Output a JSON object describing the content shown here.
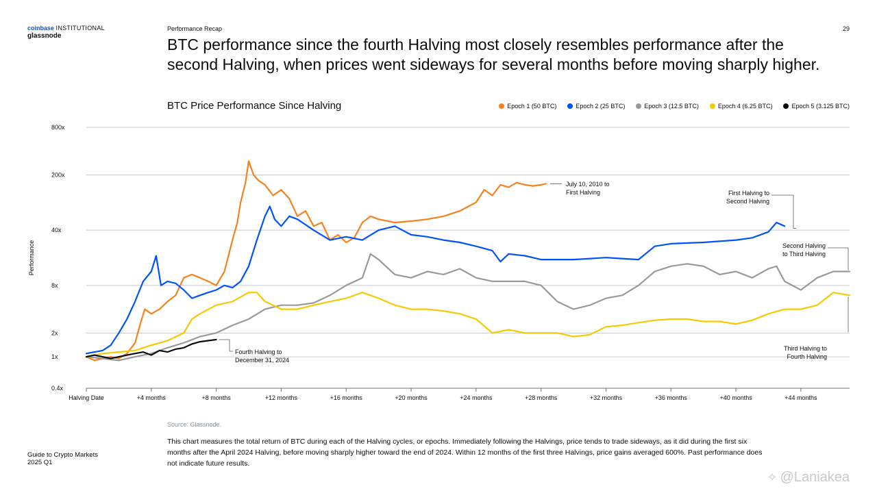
{
  "header": {
    "brand_line1": "coinbase",
    "brand_line1b": "INSTITUTIONAL",
    "brand_line2": "glassnode",
    "section": "Performance Recap",
    "page_number": "29",
    "headline": "BTC performance since the fourth Halving most closely resembles performance after the second Halving, when prices went sideways for several months before moving sharply higher."
  },
  "footer": {
    "source": "Source: Glassnode.",
    "caption": "This chart measures the total return of BTC during each of the Halving cycles, or epochs. Immediately following the Halvings, price tends to trade sideways, as it did during the first six months after the April 2024 Halving, before moving sharply higher toward the end of 2024. Within 12 months of the first three Halvings, price gains averaged 600%. Past performance does not indicate future results.",
    "guide_line1": "Guide to Crypto Markets",
    "guide_line2": "2025 Q1",
    "watermark": "@Laniakea"
  },
  "chart_data": {
    "type": "line",
    "title": "BTC Price Performance Since Halving",
    "ylabel": "Performance",
    "xlabel": "",
    "y_scale": "log",
    "ylim": [
      0.4,
      800
    ],
    "y_ticks": [
      0.4,
      1,
      2,
      8,
      40,
      200,
      800
    ],
    "y_tick_labels": [
      "0.4x",
      "1x",
      "2x",
      "8x",
      "40x",
      "200x",
      "800x"
    ],
    "xlim": [
      0,
      47
    ],
    "x_ticks": [
      0,
      4,
      8,
      12,
      16,
      20,
      24,
      28,
      32,
      36,
      40,
      44
    ],
    "x_tick_labels": [
      "Halving Date",
      "+4 months",
      "+8 months",
      "+12 months",
      "+16 months",
      "+20 months",
      "+24 months",
      "+28 months",
      "+32 months",
      "+36 months",
      "+40 months",
      "+44 months"
    ],
    "grid": true,
    "legend_position": "top-right",
    "series": [
      {
        "name": "Epoch 1 (50 BTC)",
        "color": "#f5821f",
        "x": [
          0,
          0.5,
          1,
          1.5,
          2,
          2.5,
          3,
          3.3,
          3.6,
          4,
          4.5,
          5,
          5.5,
          6,
          6.5,
          7,
          7.5,
          8,
          8.5,
          9,
          9.3,
          9.5,
          9.8,
          10,
          10.3,
          10.6,
          11,
          11.5,
          12,
          12.5,
          13,
          13.5,
          14,
          14.5,
          15,
          15.5,
          16,
          16.5,
          17,
          17.5,
          18,
          19,
          20,
          21,
          22,
          23,
          24,
          24.5,
          25,
          25.5,
          26,
          26.5,
          27,
          27.5,
          28,
          28.3
        ],
        "y": [
          1.0,
          0.9,
          0.95,
          1.0,
          0.95,
          1.1,
          1.5,
          2.5,
          4,
          3.5,
          4,
          5,
          6,
          10,
          11,
          10,
          9,
          8,
          12,
          30,
          50,
          90,
          160,
          300,
          200,
          170,
          150,
          110,
          130,
          100,
          60,
          70,
          45,
          50,
          30,
          35,
          28,
          32,
          50,
          60,
          55,
          50,
          52,
          55,
          60,
          70,
          90,
          130,
          110,
          150,
          140,
          160,
          150,
          145,
          150,
          155
        ]
      },
      {
        "name": "Epoch 2 (25 BTC)",
        "color": "#0052ff",
        "x": [
          0,
          0.5,
          1,
          1.5,
          2,
          2.5,
          3,
          3.5,
          4,
          4.3,
          4.6,
          5,
          5.5,
          6,
          6.5,
          7,
          7.5,
          8,
          8.5,
          9,
          9.5,
          10,
          10.5,
          11,
          11.3,
          11.6,
          12,
          12.5,
          13,
          14,
          15,
          16,
          17,
          18,
          19,
          20,
          21,
          22,
          23,
          24,
          25,
          25.5,
          26,
          27,
          28,
          30,
          32,
          34,
          35,
          36,
          38,
          40,
          41,
          42,
          42.5,
          43
        ],
        "y": [
          1.1,
          1.15,
          1.2,
          1.4,
          2,
          3,
          5,
          9,
          12,
          19,
          8,
          9,
          8.5,
          7,
          5.5,
          6,
          6.5,
          7,
          8,
          7.5,
          9,
          14,
          30,
          60,
          80,
          55,
          45,
          60,
          55,
          40,
          30,
          33,
          30,
          40,
          45,
          35,
          33,
          30,
          28,
          25,
          22,
          16,
          20,
          19,
          17,
          17,
          18,
          17,
          25,
          27,
          28,
          30,
          32,
          38,
          50,
          45
        ]
      },
      {
        "name": "Epoch 3 (12.5 BTC)",
        "color": "#999999",
        "x": [
          0,
          1,
          2,
          3,
          4,
          5,
          6,
          7,
          8,
          9,
          10,
          11,
          12,
          13,
          14,
          15,
          16,
          17,
          17.5,
          18,
          19,
          20,
          21,
          22,
          23,
          24,
          25,
          26,
          27,
          28,
          29,
          30,
          31,
          32,
          33,
          34,
          35,
          36,
          37,
          38,
          39,
          40,
          41,
          42,
          42.5,
          43,
          44,
          45,
          46,
          47
        ],
        "y": [
          1.0,
          0.95,
          0.9,
          1.0,
          1.1,
          1.3,
          1.5,
          1.8,
          2.0,
          2.5,
          3.0,
          4.0,
          4.5,
          4.5,
          4.8,
          6,
          8,
          10,
          20,
          17,
          11,
          10,
          12,
          11,
          13,
          10,
          9,
          9,
          9,
          8,
          5,
          4,
          4.5,
          5.5,
          6,
          8,
          12,
          14,
          15,
          14,
          11,
          12,
          10,
          13,
          14,
          9,
          7,
          10,
          12,
          12
        ]
      },
      {
        "name": "Epoch 4 (6.25 BTC)",
        "color": "#f7c900",
        "x": [
          0,
          1,
          2,
          3,
          4,
          5,
          6,
          6.5,
          7,
          8,
          9,
          10,
          10.5,
          11,
          11.5,
          12,
          13,
          14,
          15,
          16,
          17,
          18,
          19,
          20,
          21,
          22,
          23,
          24,
          25,
          26,
          27,
          28,
          29,
          30,
          31,
          32,
          33,
          34,
          35,
          36,
          37,
          38,
          39,
          40,
          41,
          42,
          43,
          44,
          45,
          46,
          47
        ],
        "y": [
          1.0,
          1.1,
          1.15,
          1.2,
          1.4,
          1.6,
          2.0,
          3.0,
          3.5,
          4.5,
          5,
          6.5,
          6.5,
          5,
          4.5,
          4,
          4.0,
          4.5,
          5.0,
          5.5,
          6.5,
          5.5,
          4.5,
          4.0,
          4.0,
          3.8,
          3.5,
          3.0,
          2.0,
          2.2,
          2.0,
          2.0,
          2.0,
          1.8,
          1.9,
          2.4,
          2.5,
          2.7,
          2.9,
          3.0,
          3.0,
          2.8,
          2.8,
          2.6,
          2.9,
          3.5,
          4,
          4,
          4.5,
          6.5,
          6
        ]
      },
      {
        "name": "Epoch 5 (3.125 BTC)",
        "color": "#0a0b0d",
        "x": [
          0,
          0.5,
          1,
          1.5,
          2,
          2.5,
          3,
          3.5,
          4,
          4.5,
          5,
          5.5,
          6,
          6.5,
          7,
          7.5,
          8
        ],
        "y": [
          1.0,
          1.05,
          1.0,
          0.95,
          1.0,
          1.05,
          1.1,
          1.15,
          1.05,
          1.2,
          1.15,
          1.25,
          1.3,
          1.45,
          1.55,
          1.6,
          1.65
        ]
      }
    ],
    "annotations": [
      {
        "text_lines": [
          "July 10, 2010 to",
          "First Halving"
        ],
        "x": 28.3,
        "y": 155
      },
      {
        "text_lines": [
          "First Halving to",
          "Second Halving"
        ],
        "x": 43,
        "y": 45
      },
      {
        "text_lines": [
          "Second Halving",
          "to Third Halving"
        ],
        "x": 47,
        "y": 12
      },
      {
        "text_lines": [
          "Third Halving to",
          "Fourth Halving"
        ],
        "x": 47,
        "y": 6
      },
      {
        "text_lines": [
          "Fourth Halving to",
          "December 31, 2024"
        ],
        "x": 8,
        "y": 1.65
      }
    ]
  },
  "colors": {
    "text": "#0a0b0d",
    "grid": "#c5cad1",
    "brand_blue": "#0052ff",
    "muted": "#8a919e"
  }
}
